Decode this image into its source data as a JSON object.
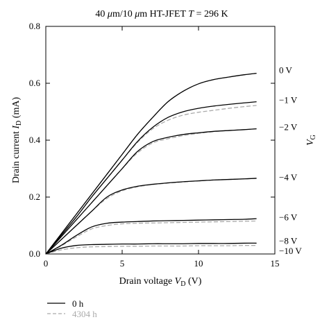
{
  "chart_data": {
    "type": "line",
    "title": "40 μm/10 μm HT-JFET T = 296 K",
    "title_parts": {
      "prefix_size": "40 ",
      "mu1": "μ",
      "unit1": "m/10 ",
      "mu2": "μ",
      "unit2": "m HT-JFET ",
      "t_var": "T",
      "t_value": " = 296 K"
    },
    "xlabel": "Drain voltage V_D (V)",
    "xlabel_parts": {
      "main": "Drain voltage ",
      "var": "V",
      "sub": "D",
      "unit": " (V)"
    },
    "ylabel": "Drain current I_D (mA)",
    "ylabel_parts": {
      "main": "Drain current ",
      "var": "I",
      "sub": "D",
      "unit": " (mA)"
    },
    "right_axis_label": "V_G",
    "right_axis_parts": {
      "var": "V",
      "sub": "G"
    },
    "xlim": [
      0,
      15
    ],
    "ylim": [
      0,
      0.8
    ],
    "x_ticks": [
      0,
      5,
      10,
      15
    ],
    "x_tick_labels": [
      "0",
      "5",
      "10",
      "15"
    ],
    "y_ticks": [
      0,
      0.2,
      0.4,
      0.6,
      0.8
    ],
    "y_tick_labels": [
      "0.0",
      "0.2",
      "0.4",
      "0.6",
      "0.8"
    ],
    "grid": false,
    "legend_position": "bottom-left below plot",
    "colors": {
      "solid": "#000000",
      "dashed": "#aaaaaa"
    },
    "gate_labels": [
      {
        "text": "0 V",
        "y": 0.645
      },
      {
        "text": "−1 V",
        "y": 0.54
      },
      {
        "text": "−2 V",
        "y": 0.445
      },
      {
        "text": "−4 V",
        "y": 0.268
      },
      {
        "text": "−6 V",
        "y": 0.128
      },
      {
        "text": "−8 V",
        "y": 0.045
      },
      {
        "text": "−10 V",
        "y": 0.01
      }
    ],
    "series": [
      {
        "name": "0 h",
        "style": "solid",
        "color": "#000000",
        "curves": [
          {
            "vg": "0 V",
            "x": [
              0,
              1,
              2,
              3,
              4,
              5,
              6,
              7,
              8,
              9,
              10,
              11,
              12,
              13,
              13.8
            ],
            "y": [
              0,
              0.07,
              0.14,
              0.21,
              0.28,
              0.35,
              0.42,
              0.48,
              0.535,
              0.572,
              0.598,
              0.613,
              0.622,
              0.63,
              0.635
            ]
          },
          {
            "vg": "−1 V",
            "x": [
              0,
              1,
              2,
              3,
              4,
              5,
              6,
              7,
              8,
              9,
              10,
              11,
              12,
              13,
              13.8
            ],
            "y": [
              0,
              0.065,
              0.13,
              0.2,
              0.265,
              0.33,
              0.395,
              0.445,
              0.48,
              0.5,
              0.512,
              0.52,
              0.526,
              0.531,
              0.535
            ]
          },
          {
            "vg": "−2 V",
            "x": [
              0,
              1,
              2,
              3,
              4,
              5,
              6,
              7,
              8,
              9,
              10,
              11,
              12,
              13,
              13.8
            ],
            "y": [
              0,
              0.06,
              0.12,
              0.18,
              0.24,
              0.3,
              0.36,
              0.395,
              0.41,
              0.42,
              0.426,
              0.431,
              0.434,
              0.437,
              0.44
            ]
          },
          {
            "vg": "−4 V",
            "x": [
              0,
              1,
              2,
              3,
              4,
              5,
              6,
              7,
              8,
              9,
              10,
              11,
              12,
              13,
              13.8
            ],
            "y": [
              0,
              0.05,
              0.1,
              0.15,
              0.2,
              0.225,
              0.238,
              0.245,
              0.25,
              0.254,
              0.257,
              0.26,
              0.262,
              0.264,
              0.266
            ]
          },
          {
            "vg": "−6 V",
            "x": [
              0,
              1,
              2,
              3,
              4,
              5,
              6,
              7,
              8,
              9,
              10,
              11,
              12,
              13,
              13.8
            ],
            "y": [
              0,
              0.03,
              0.065,
              0.095,
              0.108,
              0.112,
              0.114,
              0.116,
              0.117,
              0.118,
              0.119,
              0.12,
              0.121,
              0.122,
              0.124
            ]
          },
          {
            "vg": "−8 V",
            "x": [
              0,
              1,
              2,
              3,
              4,
              5,
              6,
              7,
              8,
              9,
              10,
              11,
              12,
              13,
              13.8
            ],
            "y": [
              0,
              0.02,
              0.03,
              0.033,
              0.034,
              0.035,
              0.035,
              0.036,
              0.036,
              0.036,
              0.037,
              0.037,
              0.037,
              0.038,
              0.038
            ]
          }
        ]
      },
      {
        "name": "4304 h",
        "style": "dashed",
        "color": "#aaaaaa",
        "curves": [
          {
            "vg": "0 V",
            "x": [
              0,
              1,
              2,
              3,
              4,
              5,
              6,
              7,
              8,
              9,
              10,
              11,
              12,
              13,
              13.8
            ],
            "y": [
              0,
              0.07,
              0.14,
              0.21,
              0.28,
              0.35,
              0.42,
              0.48,
              0.535,
              0.572,
              0.598,
              0.613,
              0.622,
              0.63,
              0.635
            ]
          },
          {
            "vg": "−1 V",
            "x": [
              0,
              1,
              2,
              3,
              4,
              5,
              6,
              7,
              8,
              9,
              10,
              11,
              12,
              13,
              13.8
            ],
            "y": [
              0,
              0.065,
              0.13,
              0.2,
              0.265,
              0.33,
              0.392,
              0.44,
              0.47,
              0.488,
              0.498,
              0.505,
              0.512,
              0.518,
              0.522
            ]
          },
          {
            "vg": "−2 V",
            "x": [
              0,
              1,
              2,
              3,
              4,
              5,
              6,
              7,
              8,
              9,
              10,
              11,
              12,
              13,
              13.8
            ],
            "y": [
              0,
              0.06,
              0.12,
              0.18,
              0.24,
              0.3,
              0.355,
              0.39,
              0.405,
              0.416,
              0.424,
              0.43,
              0.434,
              0.437,
              0.44
            ]
          },
          {
            "vg": "−4 V",
            "x": [
              0,
              1,
              2,
              3,
              4,
              5,
              6,
              7,
              8,
              9,
              10,
              11,
              12,
              13,
              13.8
            ],
            "y": [
              0,
              0.05,
              0.1,
              0.15,
              0.195,
              0.222,
              0.236,
              0.244,
              0.249,
              0.253,
              0.257,
              0.26,
              0.262,
              0.264,
              0.266
            ]
          },
          {
            "vg": "−6 V",
            "x": [
              0,
              1,
              2,
              3,
              4,
              5,
              6,
              7,
              8,
              9,
              10,
              11,
              12,
              13,
              13.8
            ],
            "y": [
              0,
              0.028,
              0.06,
              0.088,
              0.1,
              0.106,
              0.108,
              0.109,
              0.11,
              0.111,
              0.112,
              0.113,
              0.114,
              0.115,
              0.116
            ]
          },
          {
            "vg": "−8 V",
            "x": [
              0,
              1,
              2,
              3,
              4,
              5,
              6,
              7,
              8,
              9,
              10,
              11,
              12,
              13,
              13.8
            ],
            "y": [
              0,
              0.014,
              0.022,
              0.025,
              0.026,
              0.027,
              0.027,
              0.028,
              0.028,
              0.028,
              0.029,
              0.029,
              0.029,
              0.03,
              0.03
            ]
          }
        ]
      }
    ],
    "legend": [
      {
        "label": "0 h",
        "style": "solid",
        "color": "#000000"
      },
      {
        "label": "4304 h",
        "style": "dashed",
        "color": "#aaaaaa"
      }
    ]
  }
}
